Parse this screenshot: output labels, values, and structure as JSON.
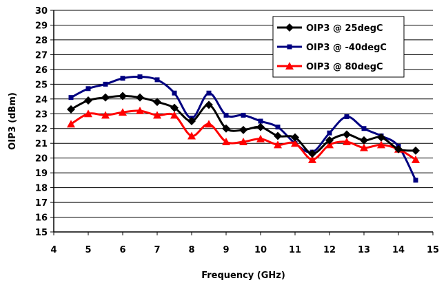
{
  "chart_data": {
    "type": "line",
    "title": "",
    "xlabel": "Frequency (GHz)",
    "ylabel": "OIP3 (dBm)",
    "xlim": [
      4,
      15
    ],
    "ylim": [
      15,
      30
    ],
    "x_ticks": [
      "4",
      "5",
      "6",
      "7",
      "8",
      "9",
      "10",
      "11",
      "12",
      "13",
      "14",
      "15"
    ],
    "y_ticks": [
      "15",
      "16",
      "17",
      "18",
      "19",
      "20",
      "21",
      "22",
      "23",
      "24",
      "25",
      "26",
      "27",
      "28",
      "29",
      "30"
    ],
    "grid": "horizontal",
    "legend_position": "top-right",
    "x": [
      4.5,
      5,
      5.5,
      6,
      6.5,
      7,
      7.5,
      8,
      8.5,
      9,
      9.5,
      10,
      10.5,
      11,
      11.5,
      12,
      12.5,
      13,
      13.5,
      14,
      14.5
    ],
    "series": [
      {
        "name": "OIP3 @ 25degC",
        "color": "#000000",
        "marker": "diamond",
        "values": [
          23.3,
          23.9,
          24.1,
          24.2,
          24.1,
          23.8,
          23.4,
          22.5,
          23.6,
          22.0,
          21.9,
          22.1,
          21.5,
          21.4,
          20.3,
          21.2,
          21.6,
          21.2,
          21.4,
          20.6,
          20.5
        ]
      },
      {
        "name": "OIP3 @ -40degC",
        "color": "#000080",
        "marker": "square",
        "values": [
          24.1,
          24.7,
          25.0,
          25.4,
          25.5,
          25.3,
          24.4,
          22.7,
          24.4,
          22.9,
          22.9,
          22.5,
          22.1,
          21.0,
          20.4,
          21.7,
          22.8,
          22.0,
          21.5,
          20.8,
          18.5
        ]
      },
      {
        "name": "OIP3 @ 80degC",
        "color": "#ff0000",
        "marker": "triangle",
        "values": [
          22.3,
          23.0,
          22.9,
          23.1,
          23.2,
          22.9,
          22.9,
          21.5,
          22.3,
          21.1,
          21.1,
          21.3,
          20.9,
          21.0,
          19.9,
          20.9,
          21.1,
          20.7,
          20.9,
          20.6,
          19.9
        ]
      }
    ]
  }
}
